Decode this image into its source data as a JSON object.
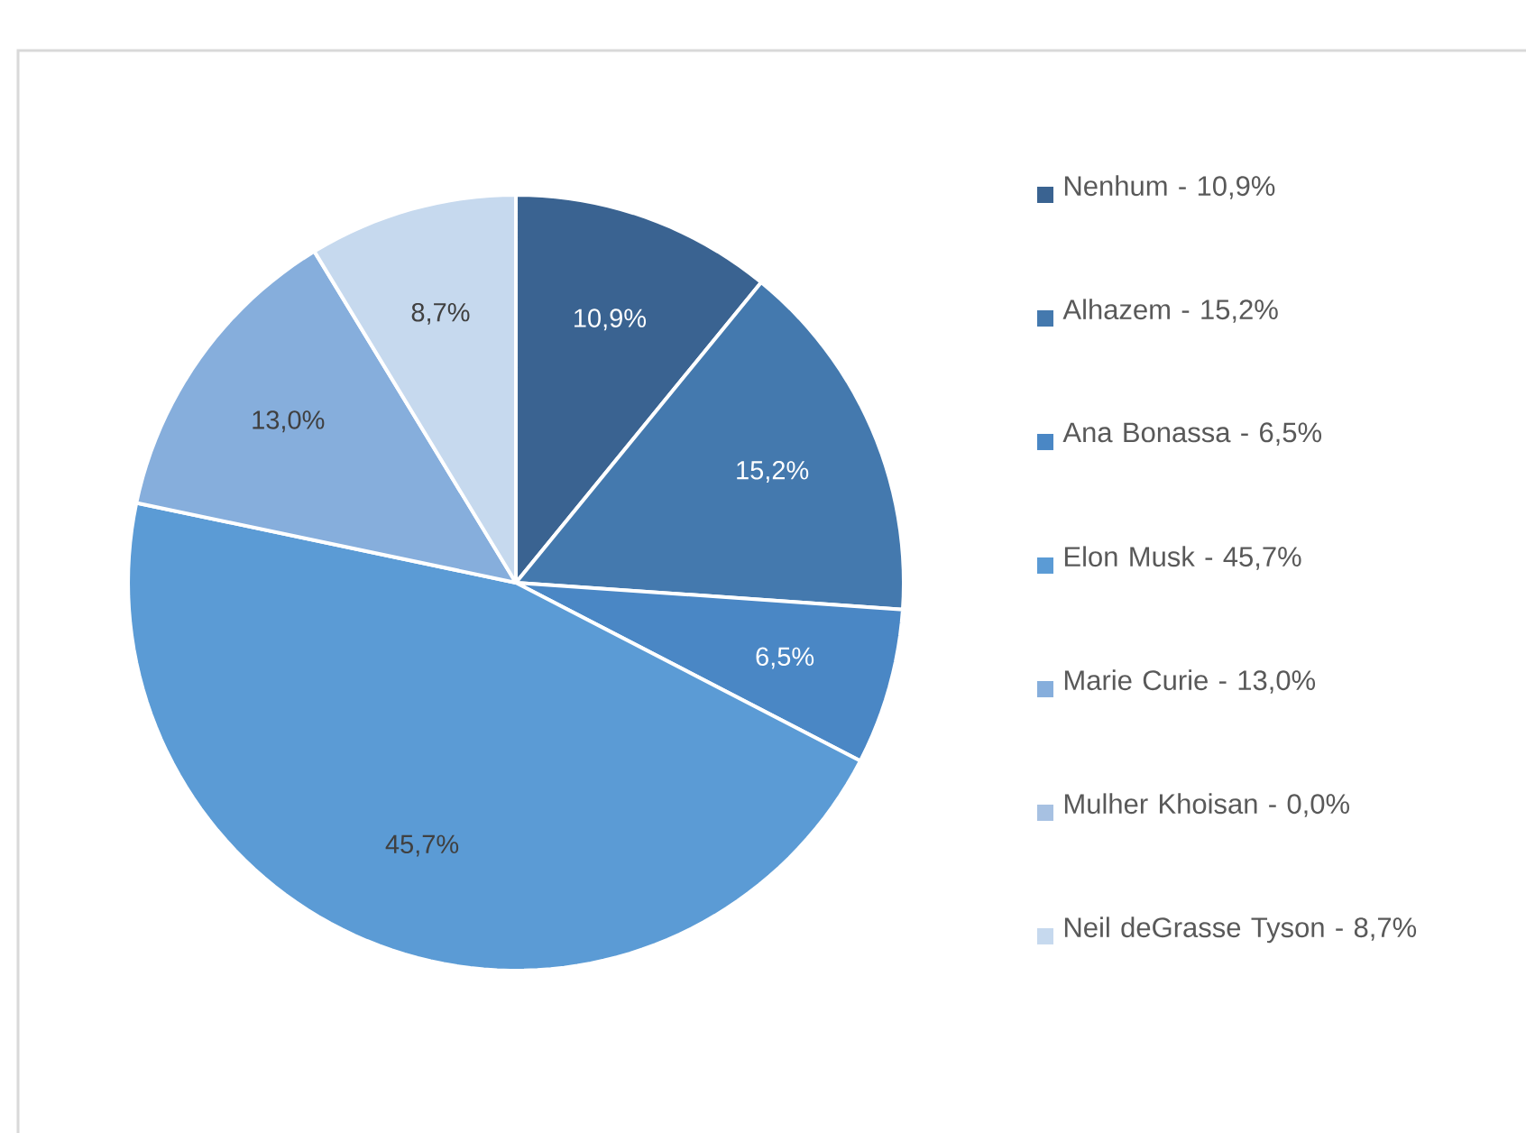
{
  "chart_data": {
    "type": "pie",
    "categories": [
      "Nenhum - 10,9%",
      "Alhazem - 15,2%",
      "Ana Bonassa - 6,5%",
      "Elon Musk - 45,7%",
      "Marie Curie - 13,0%",
      "Mulher Khoisan - 0,0%",
      "Neil deGrasse Tyson - 8,7%"
    ],
    "values": [
      10.9,
      15.2,
      6.5,
      45.7,
      13.0,
      0.0,
      8.7
    ],
    "colors": [
      "#3a6391",
      "#4479ae",
      "#4a87c5",
      "#5b9bd5",
      "#86aedc",
      "#a7c1e2",
      "#c6d9ee"
    ],
    "value_labels": [
      "10,9%",
      "15,2%",
      "6,5%",
      "45,7%",
      "13,0%",
      null,
      "8,7%"
    ],
    "legend": "right"
  }
}
